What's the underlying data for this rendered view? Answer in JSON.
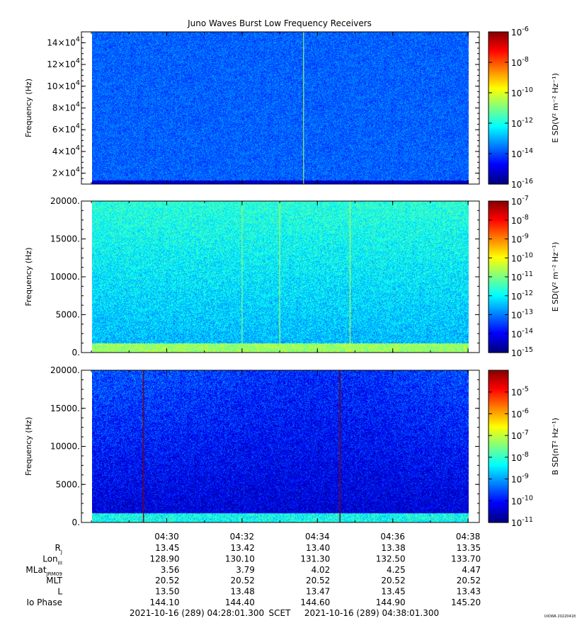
{
  "title": "Juno Waves Burst Low Frequency Receivers",
  "footer": {
    "start": "2021-10-16 (289) 04:28:01.300",
    "middle": "SCET",
    "end": "2021-10-16 (289) 04:38:01.300",
    "stamp": "UIOWA 20220418"
  },
  "chart_data": [
    {
      "type": "heatmap",
      "ylabel": "Frequency (Hz)",
      "ylim": [
        10000,
        150000
      ],
      "yticks": [
        {
          "v": 20000,
          "label": "2×10",
          "exp": "4"
        },
        {
          "v": 40000,
          "label": "4×10",
          "exp": "4"
        },
        {
          "v": 60000,
          "label": "6×10",
          "exp": "4"
        },
        {
          "v": 80000,
          "label": "8×10",
          "exp": "4"
        },
        {
          "v": 100000,
          "label": "10×10",
          "exp": "4"
        },
        {
          "v": 120000,
          "label": "12×10",
          "exp": "4"
        },
        {
          "v": 140000,
          "label": "14×10",
          "exp": "4"
        }
      ],
      "colorbar": {
        "label": "E SD(V² m⁻² Hz⁻¹)",
        "log_range": [
          -16,
          -6
        ],
        "ticks": [
          {
            "v": -6,
            "label": "10",
            "exp": "-6"
          },
          {
            "v": -8,
            "label": "10",
            "exp": "-8"
          },
          {
            "v": -10,
            "label": "10",
            "exp": "-10"
          },
          {
            "v": -12,
            "label": "10",
            "exp": "-12"
          },
          {
            "v": -14,
            "label": "10",
            "exp": "-14"
          },
          {
            "v": -16,
            "label": "10",
            "exp": "-16"
          }
        ]
      },
      "background_log_level": -13.8,
      "low_band_log_level": -15.3,
      "spikes": [
        {
          "t": "04:33:38",
          "log_level": -10.5
        }
      ]
    },
    {
      "type": "heatmap",
      "ylabel": "Frequency (Hz)",
      "ylim": [
        0,
        20000
      ],
      "yticks": [
        {
          "v": 0,
          "label": "0."
        },
        {
          "v": 5000,
          "label": "5000."
        },
        {
          "v": 10000,
          "label": "10000."
        },
        {
          "v": 15000,
          "label": "15000."
        },
        {
          "v": 20000,
          "label": "20000."
        }
      ],
      "colorbar": {
        "label": "E SD(V² m⁻² Hz⁻¹)",
        "log_range": [
          -15,
          -7
        ],
        "ticks": [
          {
            "v": -7,
            "label": "10",
            "exp": "-7"
          },
          {
            "v": -8,
            "label": "10",
            "exp": "-8"
          },
          {
            "v": -9,
            "label": "10",
            "exp": "-9"
          },
          {
            "v": -10,
            "label": "10",
            "exp": "-10"
          },
          {
            "v": -11,
            "label": "10",
            "exp": "-11"
          },
          {
            "v": -12,
            "label": "10",
            "exp": "-12"
          },
          {
            "v": -13,
            "label": "10",
            "exp": "-13"
          },
          {
            "v": -14,
            "label": "10",
            "exp": "-14"
          },
          {
            "v": -15,
            "label": "10",
            "exp": "-15"
          }
        ]
      },
      "background_log_level": -12.6,
      "low_band_log_level": -10.8,
      "spikes": [
        {
          "t": "04:32:00",
          "log_level": -10.8
        },
        {
          "t": "04:33:00",
          "log_level": -10.6
        },
        {
          "t": "04:34:52",
          "log_level": -10.4
        }
      ]
    },
    {
      "type": "heatmap",
      "ylabel": "Frequency (Hz)",
      "ylim": [
        0,
        20000
      ],
      "yticks": [
        {
          "v": 0,
          "label": "0."
        },
        {
          "v": 5000,
          "label": "5000."
        },
        {
          "v": 10000,
          "label": "10000."
        },
        {
          "v": 15000,
          "label": "15000."
        },
        {
          "v": 20000,
          "label": "20000."
        }
      ],
      "colorbar": {
        "label": "B SD(nT² Hz⁻¹)",
        "log_range": [
          -11,
          -4
        ],
        "ticks": [
          {
            "v": -5,
            "label": "10",
            "exp": "-5"
          },
          {
            "v": -6,
            "label": "10",
            "exp": "-6"
          },
          {
            "v": -7,
            "label": "10",
            "exp": "-7"
          },
          {
            "v": -8,
            "label": "10",
            "exp": "-8"
          },
          {
            "v": -9,
            "label": "10",
            "exp": "-9"
          },
          {
            "v": -10,
            "label": "10",
            "exp": "-10"
          },
          {
            "v": -11,
            "label": "10",
            "exp": "-11"
          }
        ]
      },
      "background_log_level": -10.4,
      "low_band_log_level": -8.3,
      "spikes": [
        {
          "t": "04:29:23",
          "log_level": -4.0
        },
        {
          "t": "04:34:36",
          "log_level": -4.0
        }
      ]
    }
  ],
  "time_axis": {
    "start": "04:28:01",
    "end": "04:38:01",
    "ticks": [
      "04:30",
      "04:32",
      "04:34",
      "04:36",
      "04:38"
    ]
  },
  "ephemeris": [
    {
      "label": "R",
      "sub": "J",
      "values": [
        "13.45",
        "13.42",
        "13.40",
        "13.38",
        "13.35"
      ]
    },
    {
      "label": "Lon",
      "sub": "III",
      "values": [
        "128.90",
        "130.10",
        "131.30",
        "132.50",
        "133.70"
      ]
    },
    {
      "label": "MLat",
      "sub": "JRM09",
      "values": [
        "3.56",
        "3.79",
        "4.02",
        "4.25",
        "4.47"
      ]
    },
    {
      "label": "MLT",
      "sub": "",
      "values": [
        "20.52",
        "20.52",
        "20.52",
        "20.52",
        "20.52"
      ]
    },
    {
      "label": "L",
      "sub": "",
      "values": [
        "13.50",
        "13.48",
        "13.47",
        "13.45",
        "13.43"
      ]
    },
    {
      "label": "Io Phase",
      "sub": "",
      "values": [
        "144.10",
        "144.40",
        "144.60",
        "144.90",
        "145.20"
      ]
    }
  ]
}
